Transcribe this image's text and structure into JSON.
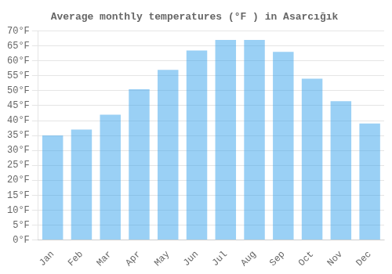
{
  "chart_data": {
    "type": "bar",
    "title": "Average monthly temperatures (°F ) in Asarcığık",
    "categories": [
      "Jan",
      "Feb",
      "Mar",
      "Apr",
      "May",
      "Jun",
      "Jul",
      "Aug",
      "Sep",
      "Oct",
      "Nov",
      "Dec"
    ],
    "values": [
      35,
      37,
      42,
      50.5,
      57,
      63.5,
      67,
      67,
      63,
      54,
      46.5,
      39
    ],
    "ylim": [
      0,
      70
    ],
    "yticks": [
      {
        "value": 0,
        "label": "0°F"
      },
      {
        "value": 5,
        "label": "5°F"
      },
      {
        "value": 10,
        "label": "10°F"
      },
      {
        "value": 15,
        "label": "15°F"
      },
      {
        "value": 20,
        "label": "20°F"
      },
      {
        "value": 25,
        "label": "25°F"
      },
      {
        "value": 30,
        "label": "30°F"
      },
      {
        "value": 35,
        "label": "35°F"
      },
      {
        "value": 40,
        "label": "40°F"
      },
      {
        "value": 45,
        "label": "45°F"
      },
      {
        "value": 50,
        "label": "50°F"
      },
      {
        "value": 55,
        "label": "55°F"
      },
      {
        "value": 60,
        "label": "60°F"
      },
      {
        "value": 65,
        "label": "65°F"
      },
      {
        "value": 70,
        "label": "70°F"
      }
    ],
    "grid": "y"
  }
}
